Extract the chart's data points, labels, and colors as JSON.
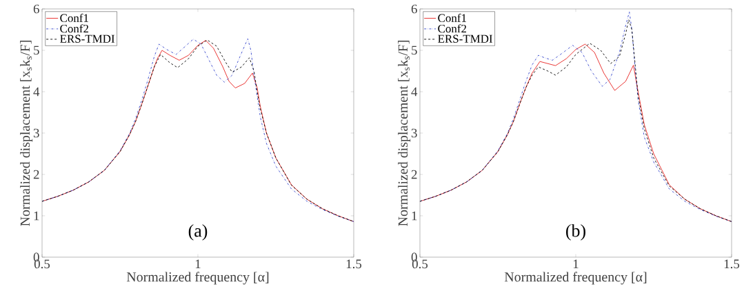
{
  "chart_data": [
    {
      "type": "line",
      "xlabel": "Normalized frequency [α]",
      "ylabel": "Normalized displacement [x$_{s}$k$_{s}$/F]",
      "annotations": [
        "(a)"
      ],
      "xlim": [
        0.5,
        1.5
      ],
      "ylim": [
        0,
        6
      ],
      "xticks": [
        0.5,
        1,
        1.5
      ],
      "yticks": [
        0,
        1,
        2,
        3,
        4,
        5,
        6
      ],
      "legend": "top left",
      "series": [
        {
          "name": "Conf1",
          "color": "#e8221f",
          "line_style": "solid",
          "x": [
            0.5,
            0.55,
            0.6,
            0.65,
            0.7,
            0.75,
            0.78,
            0.8,
            0.82,
            0.84,
            0.86,
            0.87,
            0.885,
            0.91,
            0.94,
            0.97,
            1.0,
            1.025,
            1.05,
            1.08,
            1.1,
            1.12,
            1.15,
            1.175,
            1.19,
            1.2,
            1.22,
            1.25,
            1.3,
            1.35,
            1.4,
            1.45,
            1.5
          ],
          "values": [
            1.35,
            1.47,
            1.62,
            1.82,
            2.1,
            2.55,
            2.95,
            3.28,
            3.7,
            4.15,
            4.6,
            4.8,
            5.0,
            4.88,
            4.76,
            4.88,
            5.12,
            5.24,
            5.05,
            4.6,
            4.25,
            4.09,
            4.2,
            4.45,
            4.1,
            3.65,
            3.0,
            2.4,
            1.75,
            1.4,
            1.17,
            1.0,
            0.86
          ]
        },
        {
          "name": "Conf2",
          "color": "#3344cc",
          "line_style": "dashdot",
          "x": [
            0.5,
            0.55,
            0.6,
            0.65,
            0.7,
            0.75,
            0.78,
            0.8,
            0.82,
            0.84,
            0.86,
            0.875,
            0.9,
            0.93,
            0.96,
            0.985,
            1.01,
            1.04,
            1.06,
            1.085,
            1.11,
            1.135,
            1.16,
            1.17,
            1.18,
            1.2,
            1.22,
            1.25,
            1.3,
            1.35,
            1.4,
            1.45,
            1.5
          ],
          "values": [
            1.35,
            1.47,
            1.62,
            1.82,
            2.1,
            2.57,
            2.98,
            3.35,
            3.8,
            4.3,
            4.85,
            5.15,
            5.02,
            4.9,
            5.1,
            5.27,
            5.15,
            4.7,
            4.4,
            4.23,
            4.4,
            4.85,
            5.28,
            5.0,
            4.4,
            3.4,
            2.75,
            2.2,
            1.65,
            1.35,
            1.15,
            0.99,
            0.86
          ]
        },
        {
          "name": "ERS-TMDI",
          "color": "#000000",
          "line_style": "dashed",
          "x": [
            0.5,
            0.55,
            0.6,
            0.65,
            0.7,
            0.75,
            0.78,
            0.8,
            0.82,
            0.84,
            0.86,
            0.88,
            0.91,
            0.935,
            0.97,
            1.0,
            1.03,
            1.06,
            1.09,
            1.11,
            1.14,
            1.165,
            1.18,
            1.19,
            1.2,
            1.22,
            1.25,
            1.3,
            1.35,
            1.4,
            1.45,
            1.5
          ],
          "values": [
            1.35,
            1.47,
            1.62,
            1.82,
            2.1,
            2.55,
            2.95,
            3.28,
            3.7,
            4.15,
            4.6,
            4.9,
            4.7,
            4.58,
            4.8,
            5.1,
            5.25,
            5.1,
            4.7,
            4.47,
            4.6,
            4.82,
            4.5,
            4.0,
            3.6,
            3.0,
            2.4,
            1.74,
            1.4,
            1.17,
            1.0,
            0.86
          ]
        }
      ]
    },
    {
      "type": "line",
      "xlabel": "Normalized frequency [α]",
      "ylabel": "Normalized displacement [x$_{s}$k$_{s}$/F]",
      "annotations": [
        "(b)"
      ],
      "xlim": [
        0.5,
        1.5
      ],
      "ylim": [
        0,
        6
      ],
      "xticks": [
        0.5,
        1,
        1.5
      ],
      "yticks": [
        0,
        1,
        2,
        3,
        4,
        5,
        6
      ],
      "legend": "top left",
      "series": [
        {
          "name": "Conf1",
          "color": "#e8221f",
          "line_style": "solid",
          "x": [
            0.5,
            0.55,
            0.6,
            0.65,
            0.7,
            0.75,
            0.78,
            0.8,
            0.82,
            0.84,
            0.86,
            0.885,
            0.91,
            0.935,
            0.97,
            1.0,
            1.03,
            1.06,
            1.09,
            1.125,
            1.16,
            1.185,
            1.2,
            1.22,
            1.25,
            1.3,
            1.35,
            1.4,
            1.45,
            1.5
          ],
          "values": [
            1.35,
            1.47,
            1.62,
            1.82,
            2.1,
            2.55,
            2.95,
            3.28,
            3.7,
            4.1,
            4.45,
            4.73,
            4.68,
            4.63,
            4.8,
            5.02,
            5.15,
            4.95,
            4.45,
            4.03,
            4.25,
            4.64,
            4.0,
            3.2,
            2.5,
            1.75,
            1.4,
            1.17,
            1.0,
            0.86
          ]
        },
        {
          "name": "Conf2",
          "color": "#3344cc",
          "line_style": "dashdot",
          "x": [
            0.5,
            0.55,
            0.6,
            0.65,
            0.7,
            0.75,
            0.78,
            0.8,
            0.82,
            0.84,
            0.86,
            0.88,
            0.9,
            0.925,
            0.96,
            0.99,
            1.02,
            1.05,
            1.085,
            1.11,
            1.14,
            1.16,
            1.172,
            1.18,
            1.19,
            1.2,
            1.22,
            1.25,
            1.3,
            1.35,
            1.4,
            1.45,
            1.5
          ],
          "values": [
            1.35,
            1.47,
            1.62,
            1.82,
            2.1,
            2.57,
            2.98,
            3.35,
            3.8,
            4.25,
            4.65,
            4.88,
            4.82,
            4.76,
            4.95,
            5.12,
            4.95,
            4.5,
            4.13,
            4.3,
            4.95,
            5.6,
            5.93,
            5.5,
            4.6,
            3.8,
            2.9,
            2.3,
            1.65,
            1.35,
            1.15,
            0.99,
            0.86
          ]
        },
        {
          "name": "ERS-TMDI",
          "color": "#000000",
          "line_style": "dashed",
          "x": [
            0.5,
            0.55,
            0.6,
            0.65,
            0.7,
            0.75,
            0.78,
            0.8,
            0.82,
            0.84,
            0.86,
            0.88,
            0.91,
            0.935,
            0.97,
            1.0,
            1.045,
            1.08,
            1.112,
            1.14,
            1.16,
            1.17,
            1.18,
            1.19,
            1.2,
            1.22,
            1.25,
            1.3,
            1.35,
            1.4,
            1.45,
            1.5
          ],
          "values": [
            1.35,
            1.47,
            1.62,
            1.82,
            2.1,
            2.55,
            2.95,
            3.28,
            3.7,
            4.1,
            4.4,
            4.6,
            4.5,
            4.4,
            4.6,
            4.9,
            5.17,
            5.0,
            4.68,
            4.85,
            5.4,
            5.74,
            5.5,
            4.7,
            3.9,
            3.1,
            2.4,
            1.72,
            1.4,
            1.17,
            1.0,
            0.86
          ]
        }
      ]
    }
  ]
}
